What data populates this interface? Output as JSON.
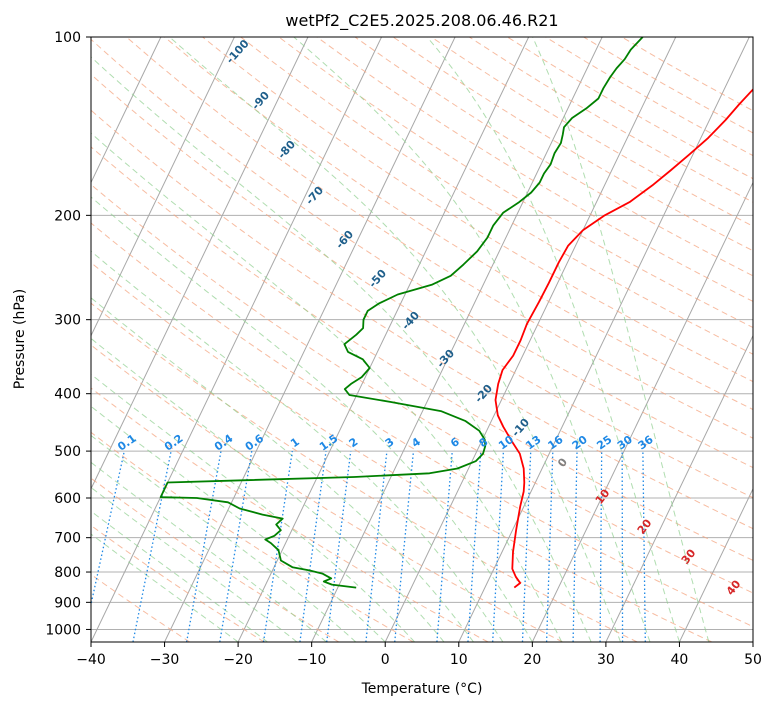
{
  "chart_data": {
    "type": "line",
    "title": "wetPf2_C2E5.2025.208.06.46.R21",
    "xlabel": "Temperature (°C)",
    "ylabel": "Pressure (hPa)",
    "xlim": [
      -40,
      50
    ],
    "ylim": [
      1050,
      100
    ],
    "y_scale": "log",
    "x_ticks": [
      "−40",
      "−30",
      "−20",
      "−10",
      "0",
      "10",
      "20",
      "30",
      "40",
      "50"
    ],
    "y_ticks": [
      "100",
      "200",
      "300",
      "400",
      "500",
      "600",
      "700",
      "800",
      "900",
      "1000"
    ],
    "grid": true,
    "series": [
      {
        "color": "#ff0000",
        "points": [
          [
            14.0,
            850
          ],
          [
            14.5,
            835
          ],
          [
            13.5,
            815
          ],
          [
            12.5,
            790
          ],
          [
            11.5,
            740
          ],
          [
            10.5,
            680
          ],
          [
            9.5,
            620
          ],
          [
            9.0,
            585
          ],
          [
            8.5,
            565
          ],
          [
            7.5,
            535
          ],
          [
            6.0,
            505
          ],
          [
            4.0,
            480
          ],
          [
            2.0,
            455
          ],
          [
            0.5,
            435
          ],
          [
            -0.8,
            410
          ],
          [
            -1.5,
            385
          ],
          [
            -1.8,
            365
          ],
          [
            -1.3,
            345
          ],
          [
            -1.3,
            325
          ],
          [
            -1.5,
            305
          ],
          [
            -1.3,
            280
          ],
          [
            -1.2,
            260
          ],
          [
            -1.2,
            240
          ],
          [
            -1.0,
            225
          ],
          [
            0.0,
            212
          ],
          [
            2.0,
            200
          ],
          [
            4.5,
            190
          ],
          [
            6.5,
            178
          ],
          [
            8.0,
            168
          ],
          [
            9.5,
            158
          ],
          [
            11.0,
            148
          ],
          [
            12.2,
            138
          ],
          [
            13.0,
            130
          ],
          [
            14.0,
            122
          ],
          [
            15.5,
            117
          ],
          [
            17.0,
            112
          ],
          [
            18.5,
            107
          ],
          [
            19.8,
            103
          ],
          [
            20.5,
            100
          ]
        ]
      },
      {
        "color": "#008000",
        "points": [
          [
            -7.5,
            850
          ],
          [
            -11.0,
            840
          ],
          [
            -12.3,
            830
          ],
          [
            -11.5,
            820
          ],
          [
            -13.0,
            805
          ],
          [
            -15.0,
            795
          ],
          [
            -17.5,
            785
          ],
          [
            -19.5,
            765
          ],
          [
            -20.5,
            735
          ],
          [
            -22.0,
            715
          ],
          [
            -23.0,
            705
          ],
          [
            -22.0,
            695
          ],
          [
            -21.5,
            680
          ],
          [
            -22.5,
            665
          ],
          [
            -22.0,
            650
          ],
          [
            -25.0,
            640
          ],
          [
            -28.5,
            625
          ],
          [
            -30.5,
            610
          ],
          [
            -35.0,
            600
          ],
          [
            -40.0,
            598
          ],
          [
            -40.0,
            565
          ],
          [
            -30.0,
            560
          ],
          [
            -15.0,
            553
          ],
          [
            -5.0,
            545
          ],
          [
            -1.5,
            535
          ],
          [
            0.5,
            520
          ],
          [
            1.0,
            505
          ],
          [
            0.8,
            490
          ],
          [
            0.3,
            478
          ],
          [
            -1.0,
            462
          ],
          [
            -3.5,
            445
          ],
          [
            -7.5,
            428
          ],
          [
            -15.0,
            413
          ],
          [
            -21.0,
            402
          ],
          [
            -22.0,
            393
          ],
          [
            -21.5,
            385
          ],
          [
            -20.5,
            375
          ],
          [
            -20.0,
            362
          ],
          [
            -21.5,
            350
          ],
          [
            -24.0,
            340
          ],
          [
            -25.0,
            330
          ],
          [
            -24.0,
            318
          ],
          [
            -23.5,
            310
          ],
          [
            -24.0,
            300
          ],
          [
            -24.0,
            290
          ],
          [
            -23.0,
            282
          ],
          [
            -21.0,
            272
          ],
          [
            -17.0,
            262
          ],
          [
            -15.0,
            253
          ],
          [
            -14.0,
            242
          ],
          [
            -13.0,
            230
          ],
          [
            -12.5,
            218
          ],
          [
            -12.5,
            208
          ],
          [
            -12.0,
            198
          ],
          [
            -10.5,
            190
          ],
          [
            -9.5,
            183
          ],
          [
            -9.0,
            176
          ],
          [
            -9.0,
            170
          ],
          [
            -8.7,
            164
          ],
          [
            -8.9,
            157
          ],
          [
            -8.7,
            151
          ],
          [
            -9.0,
            146
          ],
          [
            -9.3,
            142
          ],
          [
            -8.8,
            137
          ],
          [
            -7.5,
            132
          ],
          [
            -6.5,
            127
          ],
          [
            -6.5,
            122
          ],
          [
            -6.3,
            117
          ],
          [
            -6.0,
            113
          ],
          [
            -5.5,
            109
          ],
          [
            -5.3,
            105
          ],
          [
            -4.5,
            100
          ]
        ]
      }
    ],
    "annotations": {
      "mixing_ratio_labels": [
        "0.1",
        "0.2",
        "0.4",
        "0.6",
        "1",
        "1.5",
        "2",
        "3",
        "4",
        "6",
        "8",
        "10",
        "13",
        "16",
        "20",
        "25",
        "30",
        "36"
      ],
      "dry_adiabat_labels": [
        "-100",
        "-90",
        "-80",
        "-70",
        "-60",
        "-50",
        "-40",
        "-30",
        "-20",
        "-10"
      ],
      "moist_adiabat_labels": [
        "0",
        "10",
        "20",
        "30",
        "40"
      ]
    },
    "colors": {
      "temperature": "#ff0000",
      "dewpoint": "#008000",
      "mixing_ratio": "#1e88e5",
      "dry_adiabat_label": "#1f5f8b",
      "moist_adiabat_label": "#d62728",
      "zero_label": "#808080"
    }
  }
}
